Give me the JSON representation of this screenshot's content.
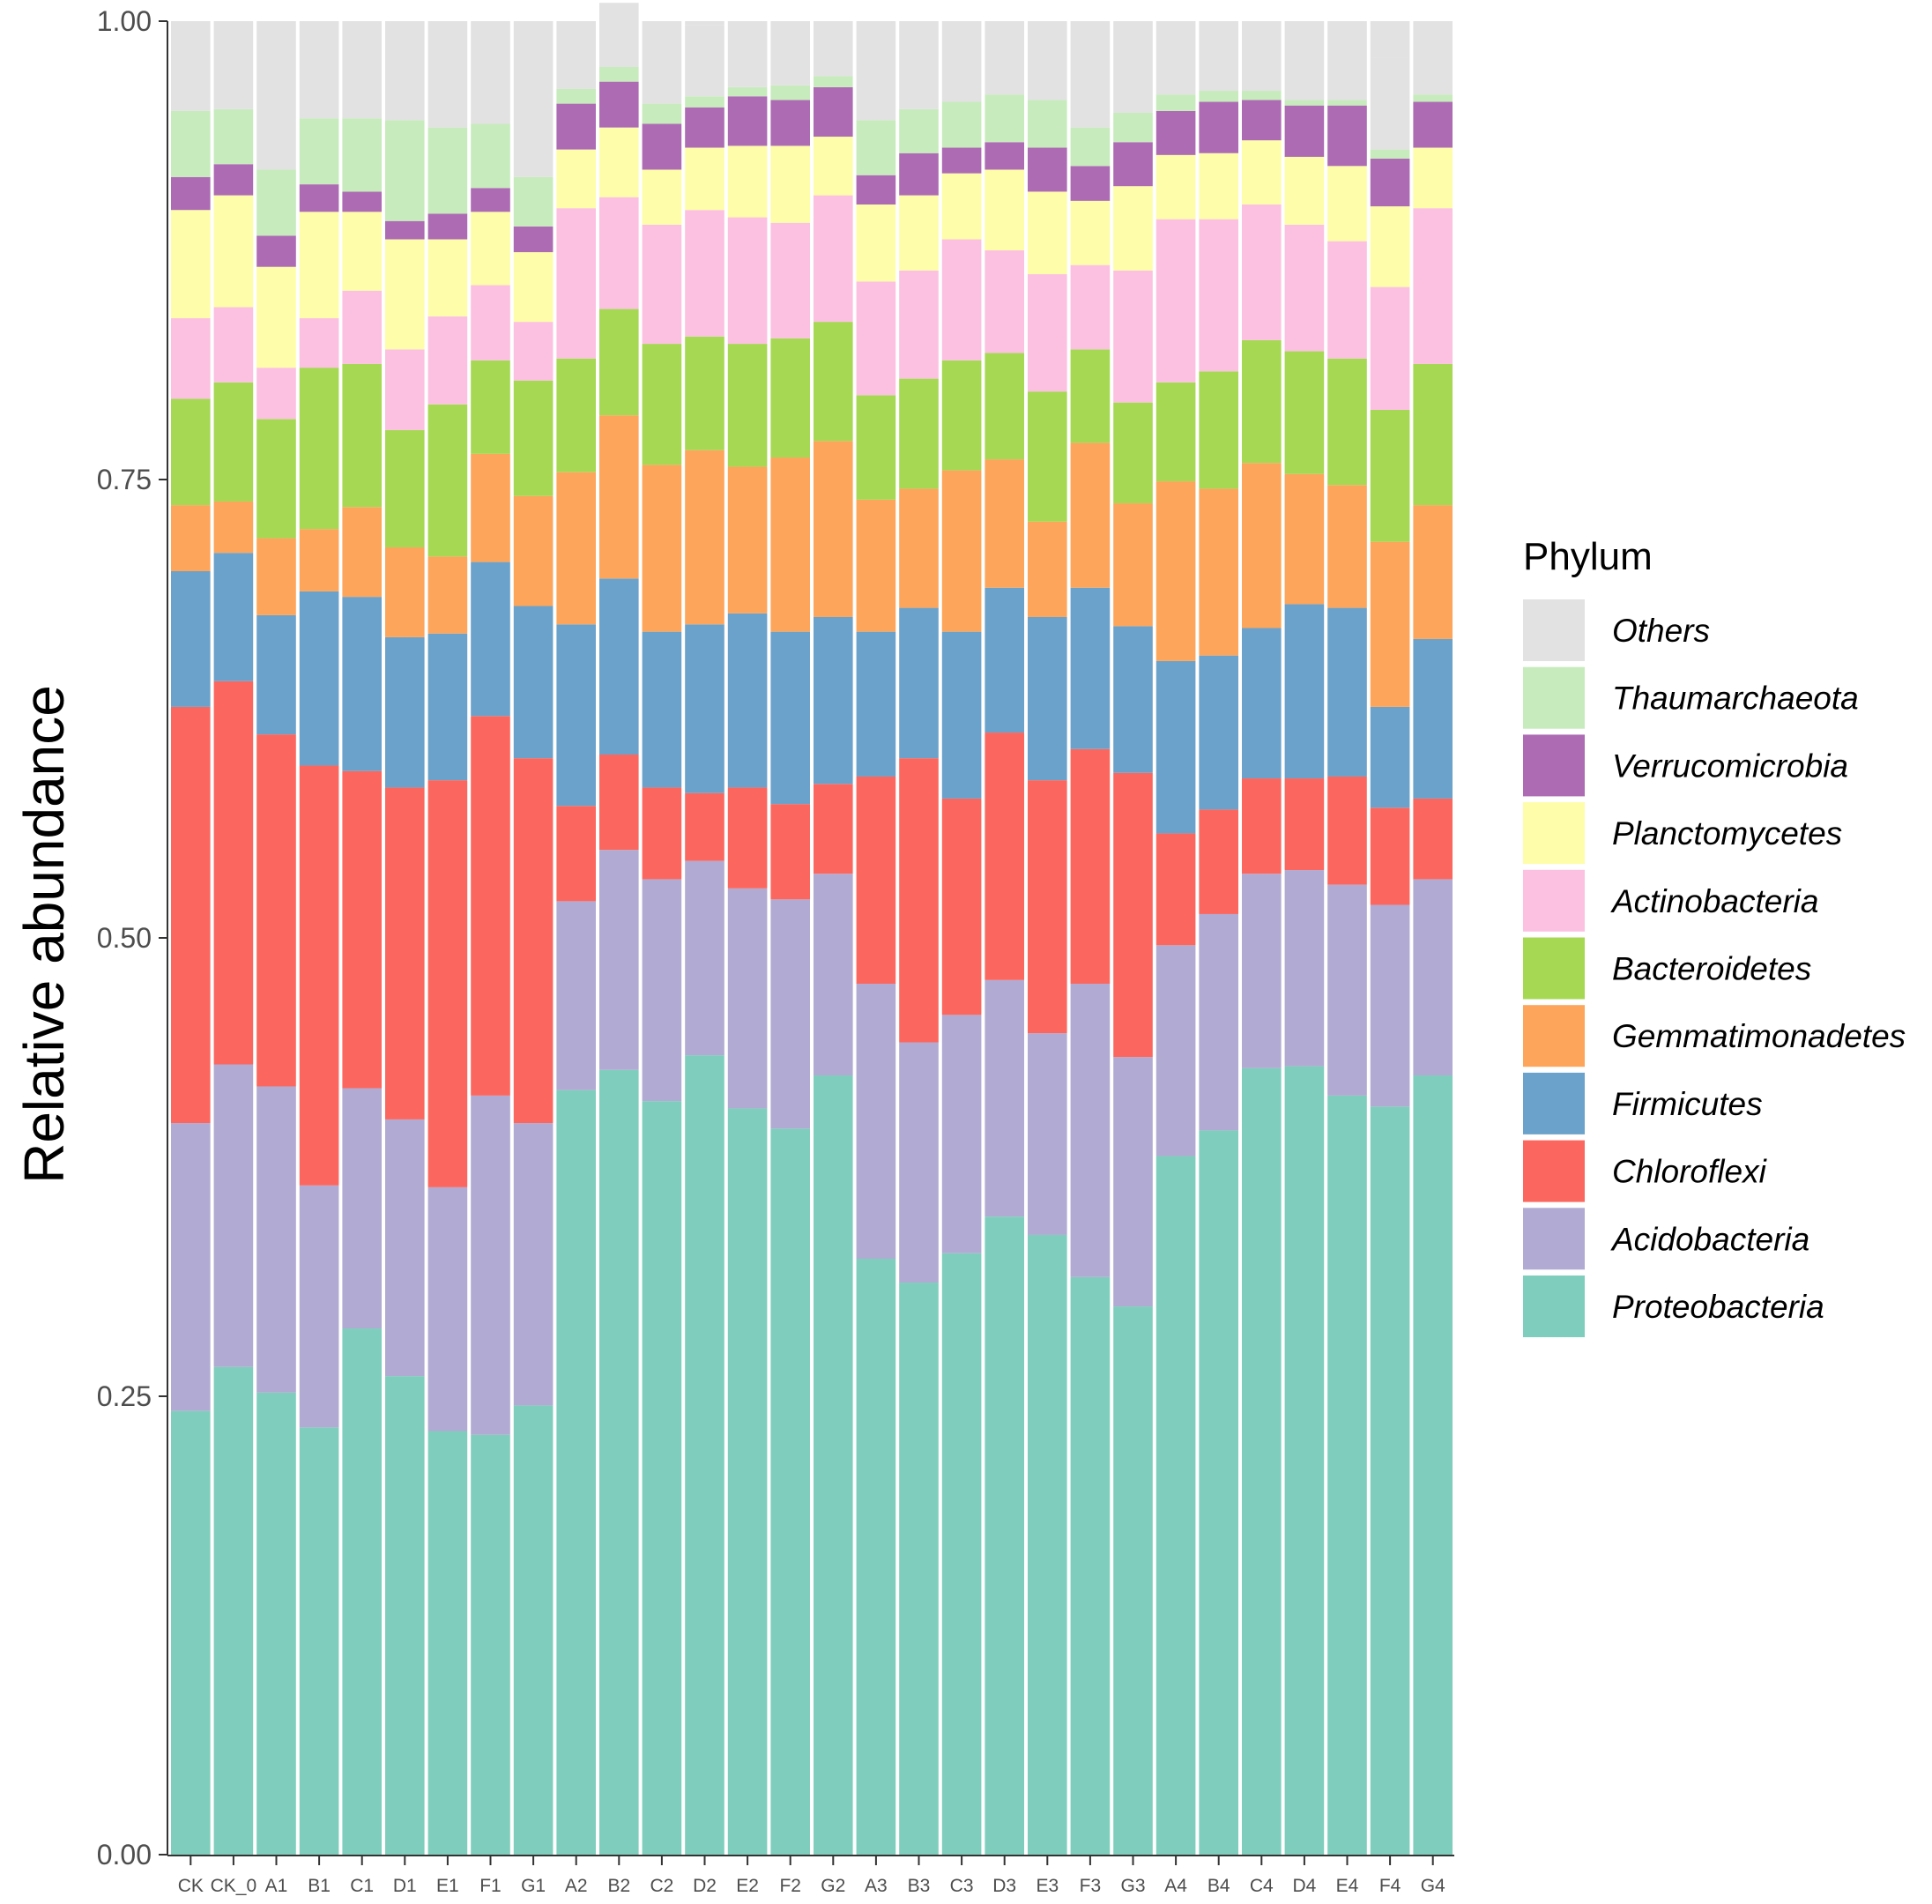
{
  "chart_data": {
    "type": "bar",
    "stacked": true,
    "title": "",
    "xlabel": "",
    "ylabel": "Relative abundance",
    "ylim": [
      0,
      1
    ],
    "yticks": [
      0,
      0.25,
      0.5,
      0.75,
      1
    ],
    "ytick_labels": [
      "0.00",
      "0.25",
      "0.50",
      "0.75",
      "1.00"
    ],
    "grid": false,
    "legend_title": "Phylum",
    "legend_position": "right",
    "categories": [
      "CK",
      "CK_0",
      "A1",
      "B1",
      "C1",
      "D1",
      "E1",
      "F1",
      "G1",
      "A2",
      "B2",
      "C2",
      "D2",
      "E2",
      "F2",
      "G2",
      "A3",
      "B3",
      "C3",
      "D3",
      "E3",
      "F3",
      "G3",
      "A4",
      "B4",
      "C4",
      "D4",
      "E4",
      "F4",
      "G4"
    ],
    "series": [
      {
        "name": "Proteobacteria",
        "color": "#7fcebd",
        "values": [
          0.242,
          0.266,
          0.252,
          0.233,
          0.287,
          0.261,
          0.231,
          0.229,
          0.245,
          0.417,
          0.428,
          0.411,
          0.436,
          0.407,
          0.396,
          0.425,
          0.325,
          0.312,
          0.328,
          0.348,
          0.338,
          0.315,
          0.299,
          0.381,
          0.395,
          0.429,
          0.43,
          0.414,
          0.408,
          0.425
        ]
      },
      {
        "name": "Acidobacteria",
        "color": "#b1aad2",
        "values": [
          0.157,
          0.165,
          0.167,
          0.132,
          0.131,
          0.14,
          0.133,
          0.185,
          0.154,
          0.103,
          0.12,
          0.121,
          0.106,
          0.12,
          0.125,
          0.11,
          0.15,
          0.131,
          0.13,
          0.129,
          0.11,
          0.16,
          0.136,
          0.115,
          0.118,
          0.106,
          0.107,
          0.115,
          0.11,
          0.107
        ]
      },
      {
        "name": "Chloroflexi",
        "color": "#fb675f",
        "values": [
          0.227,
          0.209,
          0.192,
          0.229,
          0.173,
          0.181,
          0.222,
          0.207,
          0.199,
          0.052,
          0.052,
          0.05,
          0.037,
          0.055,
          0.052,
          0.049,
          0.113,
          0.155,
          0.118,
          0.135,
          0.138,
          0.128,
          0.155,
          0.061,
          0.057,
          0.052,
          0.05,
          0.059,
          0.053,
          0.044
        ]
      },
      {
        "name": "Firmicutes",
        "color": "#6ba2cb",
        "values": [
          0.074,
          0.07,
          0.065,
          0.095,
          0.095,
          0.082,
          0.08,
          0.084,
          0.083,
          0.099,
          0.096,
          0.085,
          0.092,
          0.095,
          0.094,
          0.091,
          0.079,
          0.082,
          0.091,
          0.079,
          0.089,
          0.088,
          0.08,
          0.094,
          0.084,
          0.082,
          0.095,
          0.092,
          0.055,
          0.087
        ]
      },
      {
        "name": "Gemmatimonadetes",
        "color": "#fda55a",
        "values": [
          0.036,
          0.028,
          0.042,
          0.034,
          0.049,
          0.049,
          0.042,
          0.059,
          0.06,
          0.083,
          0.089,
          0.091,
          0.095,
          0.08,
          0.095,
          0.096,
          0.072,
          0.065,
          0.088,
          0.07,
          0.052,
          0.079,
          0.067,
          0.098,
          0.091,
          0.09,
          0.071,
          0.067,
          0.09,
          0.073
        ]
      },
      {
        "name": "Bacteroidetes",
        "color": "#a6d853",
        "values": [
          0.058,
          0.065,
          0.065,
          0.088,
          0.078,
          0.064,
          0.083,
          0.051,
          0.063,
          0.062,
          0.058,
          0.066,
          0.062,
          0.067,
          0.065,
          0.065,
          0.057,
          0.06,
          0.06,
          0.058,
          0.071,
          0.051,
          0.055,
          0.054,
          0.064,
          0.067,
          0.067,
          0.069,
          0.072,
          0.077
        ]
      },
      {
        "name": "Actinobacteria",
        "color": "#fcc1e1",
        "values": [
          0.044,
          0.041,
          0.028,
          0.027,
          0.04,
          0.044,
          0.048,
          0.041,
          0.032,
          0.082,
          0.061,
          0.065,
          0.069,
          0.069,
          0.063,
          0.069,
          0.062,
          0.059,
          0.066,
          0.056,
          0.064,
          0.046,
          0.072,
          0.089,
          0.083,
          0.074,
          0.069,
          0.064,
          0.067,
          0.085
        ]
      },
      {
        "name": "Planctomycetes",
        "color": "#fefda9",
        "values": [
          0.059,
          0.061,
          0.055,
          0.058,
          0.043,
          0.06,
          0.042,
          0.04,
          0.038,
          0.032,
          0.038,
          0.03,
          0.034,
          0.039,
          0.042,
          0.032,
          0.042,
          0.041,
          0.036,
          0.044,
          0.045,
          0.035,
          0.046,
          0.035,
          0.036,
          0.035,
          0.037,
          0.041,
          0.044,
          0.033
        ]
      },
      {
        "name": "Verrucomicrobia",
        "color": "#ad6bb3",
        "values": [
          0.018,
          0.017,
          0.017,
          0.015,
          0.011,
          0.01,
          0.014,
          0.013,
          0.014,
          0.025,
          0.025,
          0.025,
          0.022,
          0.027,
          0.025,
          0.027,
          0.016,
          0.023,
          0.014,
          0.015,
          0.024,
          0.019,
          0.024,
          0.024,
          0.028,
          0.022,
          0.028,
          0.033,
          0.026,
          0.025
        ]
      },
      {
        "name": "Thaumarchaeota",
        "color": "#c7ebbd",
        "values": [
          0.036,
          0.03,
          0.036,
          0.036,
          0.04,
          0.055,
          0.047,
          0.035,
          0.027,
          0.008,
          0.008,
          0.011,
          0.006,
          0.005,
          0.008,
          0.006,
          0.03,
          0.024,
          0.025,
          0.026,
          0.026,
          0.021,
          0.016,
          0.009,
          0.006,
          0.005,
          0.003,
          0.003,
          0.005,
          0.004
        ]
      },
      {
        "name": "Others",
        "color": "#e2e2e2",
        "values": [
          0.049,
          0.048,
          0.081,
          0.053,
          0.053,
          0.054,
          0.058,
          0.056,
          0.085,
          0.037,
          0.035,
          0.045,
          0.039,
          0.036,
          0.035,
          0.03,
          0.054,
          0.048,
          0.044,
          0.04,
          0.043,
          0.058,
          0.05,
          0.04,
          0.038,
          0.038,
          0.043,
          0.043,
          0.05,
          0.04
        ]
      }
    ],
    "legend_order": [
      "Others",
      "Thaumarchaeota",
      "Verrucomicrobia",
      "Planctomycetes",
      "Actinobacteria",
      "Bacteroidetes",
      "Gemmatimonadetes",
      "Firmicutes",
      "Chloroflexi",
      "Acidobacteria",
      "Proteobacteria"
    ]
  }
}
